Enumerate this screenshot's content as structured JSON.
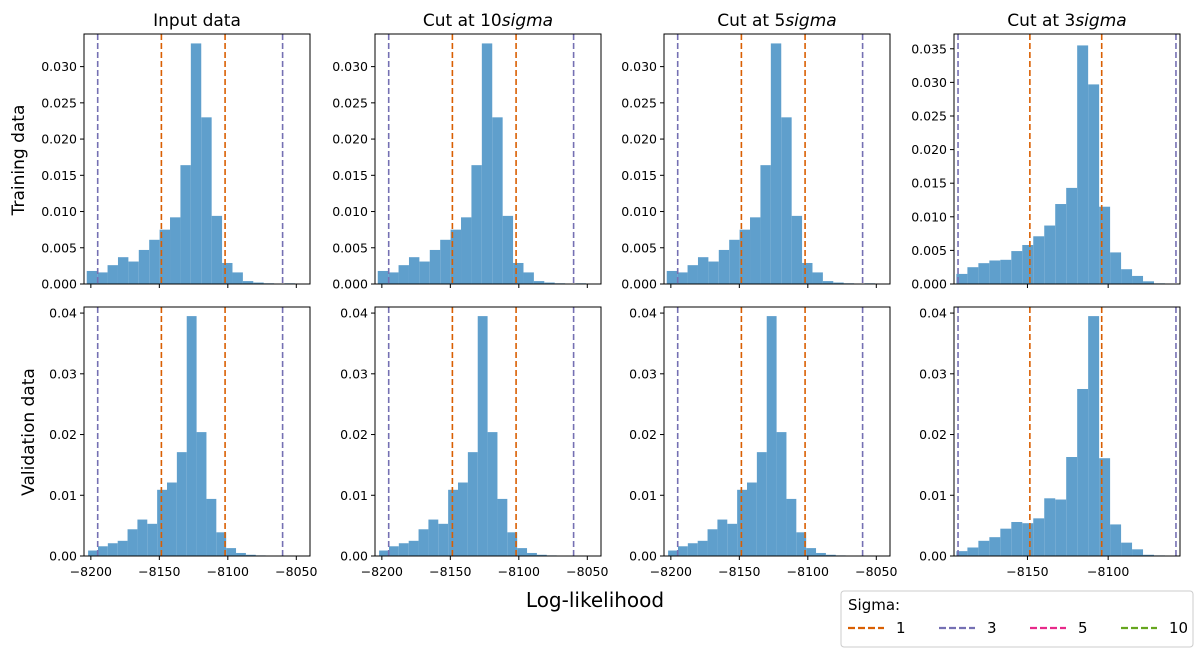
{
  "figure": {
    "xlabel": "Log-likelihood",
    "row_labels": [
      "Training data",
      "Validation data"
    ],
    "legend": {
      "title": "Sigma:",
      "entries": [
        {
          "label": "1",
          "color": "#d95f02"
        },
        {
          "label": "3",
          "color": "#7570b3"
        },
        {
          "label": "5",
          "color": "#e7298a"
        },
        {
          "label": "10",
          "color": "#66a61e"
        }
      ]
    },
    "colors": {
      "bars": "#5f9fcc",
      "sigma1": "#d95f02",
      "sigma3": "#7570b3"
    }
  },
  "chart_data": [
    {
      "type": "bar",
      "title": "Input data",
      "ylabel": "Training data",
      "xlim": [
        -8205,
        -8040
      ],
      "ylim": [
        0,
        0.0345
      ],
      "yticks": [
        0,
        0.005,
        0.01,
        0.015,
        0.02,
        0.025,
        0.03
      ],
      "yticklabels": [
        "0.000",
        "0.005",
        "0.010",
        "0.015",
        "0.020",
        "0.025",
        "0.030"
      ],
      "xticks": [
        -8200,
        -8150,
        -8100,
        -8050
      ],
      "xticklabels": [],
      "bin_edges": [
        -8203,
        -8195.4,
        -8187.8,
        -8180.2,
        -8172.6,
        -8165,
        -8157.4,
        -8149.8,
        -8142.2,
        -8134.6,
        -8127,
        -8119.4,
        -8111.8,
        -8104.2,
        -8096.6,
        -8089,
        -8081.4,
        -8073.8,
        -8066.2,
        -8058.6,
        -8051
      ],
      "values": [
        0.0018,
        0.0016,
        0.0026,
        0.0037,
        0.0031,
        0.0047,
        0.0061,
        0.0075,
        0.0092,
        0.0164,
        0.0332,
        0.023,
        0.0094,
        0.0029,
        0.0016,
        0.0004,
        0.0002,
        0.0001,
        0,
        0.0001
      ],
      "vlines": [
        {
          "x": -8195,
          "sigma": "3"
        },
        {
          "x": -8148.5,
          "sigma": "1"
        },
        {
          "x": -8102,
          "sigma": "1"
        },
        {
          "x": -8060,
          "sigma": "3"
        }
      ]
    },
    {
      "type": "bar",
      "title": "Cut at 10$sigma$",
      "ylabel": "",
      "xlim": [
        -8205,
        -8040
      ],
      "ylim": [
        0,
        0.0345
      ],
      "yticks": [
        0,
        0.005,
        0.01,
        0.015,
        0.02,
        0.025,
        0.03
      ],
      "yticklabels": [
        "0.000",
        "0.005",
        "0.010",
        "0.015",
        "0.020",
        "0.025",
        "0.030"
      ],
      "xticks": [
        -8200,
        -8150,
        -8100,
        -8050
      ],
      "xticklabels": [],
      "bin_edges": [
        -8203,
        -8195.4,
        -8187.8,
        -8180.2,
        -8172.6,
        -8165,
        -8157.4,
        -8149.8,
        -8142.2,
        -8134.6,
        -8127,
        -8119.4,
        -8111.8,
        -8104.2,
        -8096.6,
        -8089,
        -8081.4,
        -8073.8,
        -8066.2,
        -8058.6,
        -8051
      ],
      "values": [
        0.0018,
        0.0016,
        0.0026,
        0.0037,
        0.0031,
        0.0047,
        0.0061,
        0.0075,
        0.0092,
        0.0164,
        0.0332,
        0.023,
        0.0094,
        0.0029,
        0.0016,
        0.0004,
        0.0002,
        0.0001,
        0,
        0.0001
      ],
      "vlines": [
        {
          "x": -8195,
          "sigma": "3"
        },
        {
          "x": -8148.5,
          "sigma": "1"
        },
        {
          "x": -8102,
          "sigma": "1"
        },
        {
          "x": -8060,
          "sigma": "3"
        }
      ]
    },
    {
      "type": "bar",
      "title": "Cut at 5$sigma$",
      "ylabel": "",
      "xlim": [
        -8205,
        -8040
      ],
      "ylim": [
        0,
        0.0345
      ],
      "yticks": [
        0,
        0.005,
        0.01,
        0.015,
        0.02,
        0.025,
        0.03
      ],
      "yticklabels": [
        "0.000",
        "0.005",
        "0.010",
        "0.015",
        "0.020",
        "0.025",
        "0.030"
      ],
      "xticks": [
        -8200,
        -8150,
        -8100,
        -8050
      ],
      "xticklabels": [],
      "bin_edges": [
        -8203,
        -8195.4,
        -8187.8,
        -8180.2,
        -8172.6,
        -8165,
        -8157.4,
        -8149.8,
        -8142.2,
        -8134.6,
        -8127,
        -8119.4,
        -8111.8,
        -8104.2,
        -8096.6,
        -8089,
        -8081.4,
        -8073.8,
        -8066.2,
        -8058.6,
        -8051
      ],
      "values": [
        0.0018,
        0.0016,
        0.0026,
        0.0037,
        0.0031,
        0.0047,
        0.0061,
        0.0075,
        0.0092,
        0.0164,
        0.0332,
        0.023,
        0.0094,
        0.0029,
        0.0016,
        0.0004,
        0.0002,
        0.0001,
        0,
        0.0001
      ],
      "vlines": [
        {
          "x": -8195,
          "sigma": "3"
        },
        {
          "x": -8148.5,
          "sigma": "1"
        },
        {
          "x": -8102,
          "sigma": "1"
        },
        {
          "x": -8060,
          "sigma": "3"
        }
      ]
    },
    {
      "type": "bar",
      "title": "Cut at 3$sigma$",
      "ylabel": "",
      "xlim": [
        -8195.5,
        -8055.5
      ],
      "ylim": [
        0,
        0.0372
      ],
      "yticks": [
        0,
        0.005,
        0.01,
        0.015,
        0.02,
        0.025,
        0.03,
        0.035
      ],
      "yticklabels": [
        "0.000",
        "0.005",
        "0.010",
        "0.015",
        "0.020",
        "0.025",
        "0.030",
        "0.035"
      ],
      "xticks": [
        -8150,
        -8100
      ],
      "xticklabels": [],
      "bin_edges": [
        -8194,
        -8187.2,
        -8180.4,
        -8173.6,
        -8166.8,
        -8160,
        -8153.2,
        -8146.4,
        -8139.6,
        -8132.8,
        -8126,
        -8119.2,
        -8112.4,
        -8105.6,
        -8098.8,
        -8092,
        -8085.2,
        -8078.4,
        -8071.6,
        -8064.8
      ],
      "values": [
        0.0015,
        0.0025,
        0.0031,
        0.0035,
        0.0036,
        0.0049,
        0.0058,
        0.0071,
        0.0087,
        0.0119,
        0.0143,
        0.0355,
        0.0297,
        0.0115,
        0.0047,
        0.0022,
        0.0012,
        0.0004,
        0.0001
      ],
      "vlines": [
        {
          "x": -8193,
          "sigma": "3"
        },
        {
          "x": -8148.5,
          "sigma": "1"
        },
        {
          "x": -8104,
          "sigma": "1"
        },
        {
          "x": -8058,
          "sigma": "3"
        }
      ]
    },
    {
      "type": "bar",
      "title": "",
      "ylabel": "Validation data",
      "xlim": [
        -8205,
        -8040
      ],
      "ylim": [
        0,
        0.041
      ],
      "yticks": [
        0,
        0.01,
        0.02,
        0.03,
        0.04
      ],
      "yticklabels": [
        "0.00",
        "0.01",
        "0.02",
        "0.03",
        "0.04"
      ],
      "xticks": [
        -8200,
        -8150,
        -8100,
        -8050
      ],
      "xticklabels": [
        "−8200",
        "−8150",
        "−8100",
        "−8050"
      ],
      "bin_edges": [
        -8202,
        -8194.8,
        -8187.6,
        -8180.4,
        -8173.2,
        -8166,
        -8158.8,
        -8151.6,
        -8144.4,
        -8137.2,
        -8130,
        -8122.8,
        -8115.6,
        -8108.4,
        -8101.2,
        -8094,
        -8086.8,
        -8079.6,
        -8072.4,
        -8065.2
      ],
      "values": [
        0.0009,
        0.0016,
        0.0021,
        0.0025,
        0.0044,
        0.006,
        0.0053,
        0.0109,
        0.0121,
        0.0171,
        0.0395,
        0.0204,
        0.0094,
        0.0039,
        0.0013,
        0.0005,
        0.0002,
        0.0001,
        0
      ],
      "vlines": [
        {
          "x": -8195,
          "sigma": "3"
        },
        {
          "x": -8148.5,
          "sigma": "1"
        },
        {
          "x": -8102,
          "sigma": "1"
        },
        {
          "x": -8060,
          "sigma": "3"
        }
      ]
    },
    {
      "type": "bar",
      "title": "",
      "ylabel": "",
      "xlim": [
        -8205,
        -8040
      ],
      "ylim": [
        0,
        0.041
      ],
      "yticks": [
        0,
        0.01,
        0.02,
        0.03,
        0.04
      ],
      "yticklabels": [
        "0.00",
        "0.01",
        "0.02",
        "0.03",
        "0.04"
      ],
      "xticks": [
        -8200,
        -8150,
        -8100,
        -8050
      ],
      "xticklabels": [
        "−8200",
        "−8150",
        "−8100",
        "−8050"
      ],
      "bin_edges": [
        -8202,
        -8194.8,
        -8187.6,
        -8180.4,
        -8173.2,
        -8166,
        -8158.8,
        -8151.6,
        -8144.4,
        -8137.2,
        -8130,
        -8122.8,
        -8115.6,
        -8108.4,
        -8101.2,
        -8094,
        -8086.8,
        -8079.6,
        -8072.4,
        -8065.2
      ],
      "values": [
        0.0009,
        0.0016,
        0.0021,
        0.0025,
        0.0044,
        0.006,
        0.0053,
        0.0109,
        0.0121,
        0.0171,
        0.0395,
        0.0204,
        0.0094,
        0.0039,
        0.0013,
        0.0005,
        0.0002,
        0.0001,
        0
      ],
      "vlines": [
        {
          "x": -8195,
          "sigma": "3"
        },
        {
          "x": -8148.5,
          "sigma": "1"
        },
        {
          "x": -8102,
          "sigma": "1"
        },
        {
          "x": -8060,
          "sigma": "3"
        }
      ]
    },
    {
      "type": "bar",
      "title": "",
      "ylabel": "",
      "xlim": [
        -8205,
        -8040
      ],
      "ylim": [
        0,
        0.041
      ],
      "yticks": [
        0,
        0.01,
        0.02,
        0.03,
        0.04
      ],
      "yticklabels": [
        "0.00",
        "0.01",
        "0.02",
        "0.03",
        "0.04"
      ],
      "xticks": [
        -8200,
        -8150,
        -8100,
        -8050
      ],
      "xticklabels": [
        "−8200",
        "−8150",
        "−8100",
        "−8050"
      ],
      "bin_edges": [
        -8202,
        -8194.8,
        -8187.6,
        -8180.4,
        -8173.2,
        -8166,
        -8158.8,
        -8151.6,
        -8144.4,
        -8137.2,
        -8130,
        -8122.8,
        -8115.6,
        -8108.4,
        -8101.2,
        -8094,
        -8086.8,
        -8079.6,
        -8072.4,
        -8065.2
      ],
      "values": [
        0.0009,
        0.0016,
        0.0021,
        0.0025,
        0.0044,
        0.006,
        0.0053,
        0.0109,
        0.0121,
        0.0171,
        0.0395,
        0.0204,
        0.0094,
        0.0039,
        0.0013,
        0.0005,
        0.0002,
        0.0001,
        0
      ],
      "vlines": [
        {
          "x": -8195,
          "sigma": "3"
        },
        {
          "x": -8148.5,
          "sigma": "1"
        },
        {
          "x": -8102,
          "sigma": "1"
        },
        {
          "x": -8060,
          "sigma": "3"
        }
      ]
    },
    {
      "type": "bar",
      "title": "",
      "ylabel": "",
      "xlim": [
        -8195.5,
        -8055.5
      ],
      "ylim": [
        0,
        0.041
      ],
      "yticks": [
        0,
        0.01,
        0.02,
        0.03,
        0.04
      ],
      "yticklabels": [
        "0.00",
        "0.01",
        "0.02",
        "0.03",
        "0.04"
      ],
      "xticks": [
        -8150,
        -8100
      ],
      "xticklabels": [
        "−8150",
        "−8100"
      ],
      "bin_edges": [
        -8194,
        -8187.2,
        -8180.4,
        -8173.6,
        -8166.8,
        -8160,
        -8153.2,
        -8146.4,
        -8139.6,
        -8132.8,
        -8126,
        -8119.2,
        -8112.4,
        -8105.6,
        -8098.8,
        -8092,
        -8085.2,
        -8078.4,
        -8071.6,
        -8064.8
      ],
      "values": [
        0.0008,
        0.0014,
        0.0025,
        0.0031,
        0.0045,
        0.0056,
        0.0054,
        0.0062,
        0.0095,
        0.0093,
        0.0163,
        0.0275,
        0.0395,
        0.0161,
        0.0052,
        0.0022,
        0.0011,
        0.0002,
        0.0001
      ],
      "vlines": [
        {
          "x": -8193,
          "sigma": "3"
        },
        {
          "x": -8148.5,
          "sigma": "1"
        },
        {
          "x": -8104,
          "sigma": "1"
        },
        {
          "x": -8058,
          "sigma": "3"
        }
      ]
    }
  ]
}
